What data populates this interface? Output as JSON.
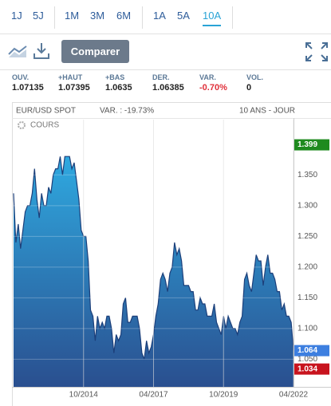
{
  "toolbar": {
    "periods": [
      "1J",
      "5J",
      "1M",
      "3M",
      "6M",
      "1A",
      "5A",
      "10A"
    ],
    "compare": "Comparer"
  },
  "stats": [
    {
      "label": "OUV.",
      "value": "1.07135"
    },
    {
      "label": "+HAUT",
      "value": "1.07395"
    },
    {
      "label": "+BAS",
      "value": "1.0635"
    },
    {
      "label": "DER.",
      "value": "1.06385"
    },
    {
      "label": "VAR.",
      "value": "-0.70%"
    },
    {
      "label": "VOL.",
      "value": "0"
    }
  ],
  "chart_data": {
    "type": "area",
    "title": "EUR/USD SPOT",
    "change": "VAR. : -19.73%",
    "period": "10 ANS - JOUR",
    "x": [
      "04/2012",
      "05/2012",
      "06/2012",
      "07/2012",
      "08/2012",
      "09/2012",
      "10/2012",
      "11/2012",
      "12/2012",
      "01/2013",
      "02/2013",
      "03/2013",
      "04/2013",
      "05/2013",
      "06/2013",
      "07/2013",
      "08/2013",
      "09/2013",
      "10/2013",
      "11/2013",
      "12/2013",
      "01/2014",
      "02/2014",
      "03/2014",
      "04/2014",
      "05/2014",
      "06/2014",
      "07/2014",
      "08/2014",
      "09/2014",
      "10/2014",
      "11/2014",
      "12/2014",
      "01/2015",
      "02/2015",
      "03/2015",
      "04/2015",
      "05/2015",
      "06/2015",
      "07/2015",
      "08/2015",
      "09/2015",
      "10/2015",
      "11/2015",
      "12/2015",
      "01/2016",
      "02/2016",
      "03/2016",
      "04/2016",
      "05/2016",
      "06/2016",
      "07/2016",
      "08/2016",
      "09/2016",
      "10/2016",
      "11/2016",
      "12/2016",
      "01/2017",
      "02/2017",
      "03/2017",
      "04/2017",
      "05/2017",
      "06/2017",
      "07/2017",
      "08/2017",
      "09/2017",
      "10/2017",
      "11/2017",
      "12/2017",
      "01/2018",
      "02/2018",
      "03/2018",
      "04/2018",
      "05/2018",
      "06/2018",
      "07/2018",
      "08/2018",
      "09/2018",
      "10/2018",
      "11/2018",
      "12/2018",
      "01/2019",
      "02/2019",
      "03/2019",
      "04/2019",
      "05/2019",
      "06/2019",
      "07/2019",
      "08/2019",
      "09/2019",
      "10/2019",
      "11/2019",
      "12/2019",
      "01/2020",
      "02/2020",
      "03/2020",
      "04/2020",
      "05/2020",
      "06/2020",
      "07/2020",
      "08/2020",
      "09/2020",
      "10/2020",
      "11/2020",
      "12/2020",
      "01/2021",
      "02/2021",
      "03/2021",
      "04/2021",
      "05/2021",
      "06/2021",
      "07/2021",
      "08/2021",
      "09/2021",
      "10/2021",
      "11/2021",
      "12/2021",
      "01/2022",
      "02/2022",
      "03/2022",
      "04/2022"
    ],
    "series": [
      {
        "name": "COURS",
        "color": "#1c3f7a",
        "values": [
          1.32,
          1.24,
          1.27,
          1.23,
          1.26,
          1.29,
          1.3,
          1.3,
          1.32,
          1.36,
          1.31,
          1.28,
          1.32,
          1.3,
          1.3,
          1.33,
          1.32,
          1.35,
          1.36,
          1.36,
          1.38,
          1.35,
          1.38,
          1.38,
          1.38,
          1.36,
          1.37,
          1.34,
          1.31,
          1.26,
          1.25,
          1.25,
          1.21,
          1.13,
          1.12,
          1.08,
          1.12,
          1.1,
          1.11,
          1.1,
          1.12,
          1.12,
          1.1,
          1.06,
          1.09,
          1.08,
          1.09,
          1.14,
          1.15,
          1.11,
          1.11,
          1.12,
          1.12,
          1.12,
          1.1,
          1.06,
          1.05,
          1.08,
          1.06,
          1.07,
          1.09,
          1.12,
          1.14,
          1.18,
          1.19,
          1.18,
          1.16,
          1.19,
          1.2,
          1.24,
          1.22,
          1.23,
          1.21,
          1.17,
          1.17,
          1.17,
          1.16,
          1.16,
          1.13,
          1.13,
          1.15,
          1.14,
          1.14,
          1.12,
          1.12,
          1.12,
          1.14,
          1.11,
          1.1,
          1.09,
          1.12,
          1.1,
          1.12,
          1.11,
          1.1,
          1.1,
          1.09,
          1.11,
          1.12,
          1.18,
          1.19,
          1.17,
          1.16,
          1.19,
          1.22,
          1.21,
          1.21,
          1.17,
          1.2,
          1.22,
          1.19,
          1.19,
          1.18,
          1.16,
          1.16,
          1.13,
          1.14,
          1.12,
          1.12,
          1.11,
          1.064
        ]
      }
    ],
    "ylim": [
      1.005,
      1.44
    ],
    "yticks": [
      {
        "value": 1.05,
        "label": "1.050"
      },
      {
        "value": 1.1,
        "label": "1.100"
      },
      {
        "value": 1.15,
        "label": "1.150"
      },
      {
        "value": 1.2,
        "label": "1.200"
      },
      {
        "value": 1.25,
        "label": "1.250"
      },
      {
        "value": 1.3,
        "label": "1.300"
      },
      {
        "value": 1.35,
        "label": "1.350"
      }
    ],
    "xticks": [
      "10/2014",
      "04/2017",
      "10/2019",
      "04/2022"
    ],
    "grid": true,
    "markers": [
      {
        "value": 1.399,
        "color": "#1e8a1e"
      },
      {
        "value": 1.064,
        "color": "#3d7fe0"
      },
      {
        "value": 1.034,
        "color": "#c8141e"
      }
    ]
  }
}
